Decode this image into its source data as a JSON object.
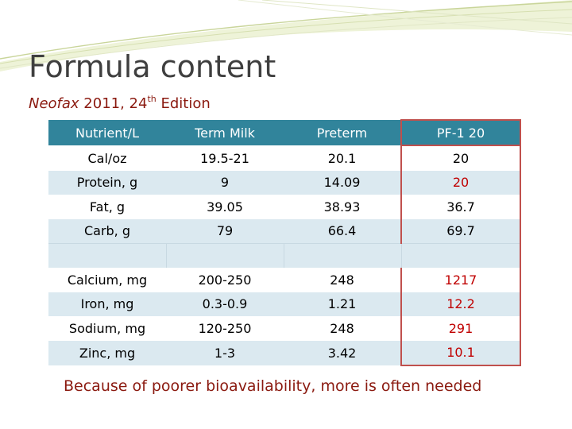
{
  "slide": {
    "title": "Formula content",
    "subtitle_source": "Neofax",
    "subtitle_rest": " 2011, 24",
    "subtitle_sup": "th",
    "subtitle_tail": " Edition",
    "footer": "Because of poorer bioavailability, more is often needed",
    "accent_color": "#31849b",
    "highlight_color": "#c00000"
  },
  "table": {
    "headers": [
      "Nutrient/L",
      "Term Milk",
      "Preterm",
      "PF-1 20"
    ],
    "rows": [
      [
        "Cal/oz",
        "19.5-21",
        "20.1",
        "20"
      ],
      [
        "Protein, g",
        "9",
        "14.09",
        "20"
      ],
      [
        "Fat, g",
        "39.05",
        "38.93",
        "36.7"
      ],
      [
        "Carb, g",
        "79",
        "66.4",
        "69.7"
      ],
      [
        "",
        "",
        "",
        ""
      ],
      [
        "Calcium, mg",
        "200-250",
        "248",
        "1217"
      ],
      [
        "Iron, mg",
        "0.3-0.9",
        "1.21",
        "12.2"
      ],
      [
        "Sodium, mg",
        "120-250",
        "248",
        "291"
      ],
      [
        "Zinc, mg",
        "1-3",
        "3.42",
        "10.1"
      ]
    ]
  }
}
